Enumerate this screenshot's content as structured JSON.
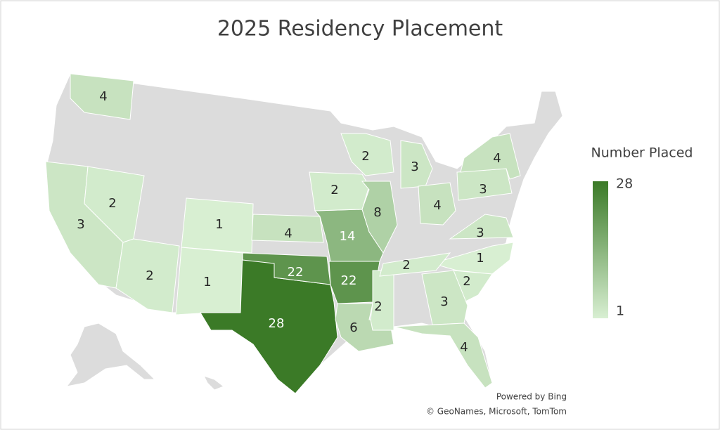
{
  "chart_data": {
    "type": "choropleth",
    "title": "2025 Residency Placement",
    "values": [
      4,
      3,
      2,
      2,
      1,
      1,
      28,
      22,
      4,
      14,
      22,
      6,
      2,
      2,
      2,
      8,
      3,
      4,
      3,
      4,
      3,
      1,
      2,
      2,
      3,
      4
    ],
    "legend": {
      "title": "Number Placed",
      "range": [
        1,
        28
      ],
      "min_color": "#d8efd2",
      "max_color": "#3b7a27",
      "position": "right"
    },
    "credits": [
      "Powered by Bing",
      "© GeoNames, Microsoft, TomTom"
    ]
  }
}
